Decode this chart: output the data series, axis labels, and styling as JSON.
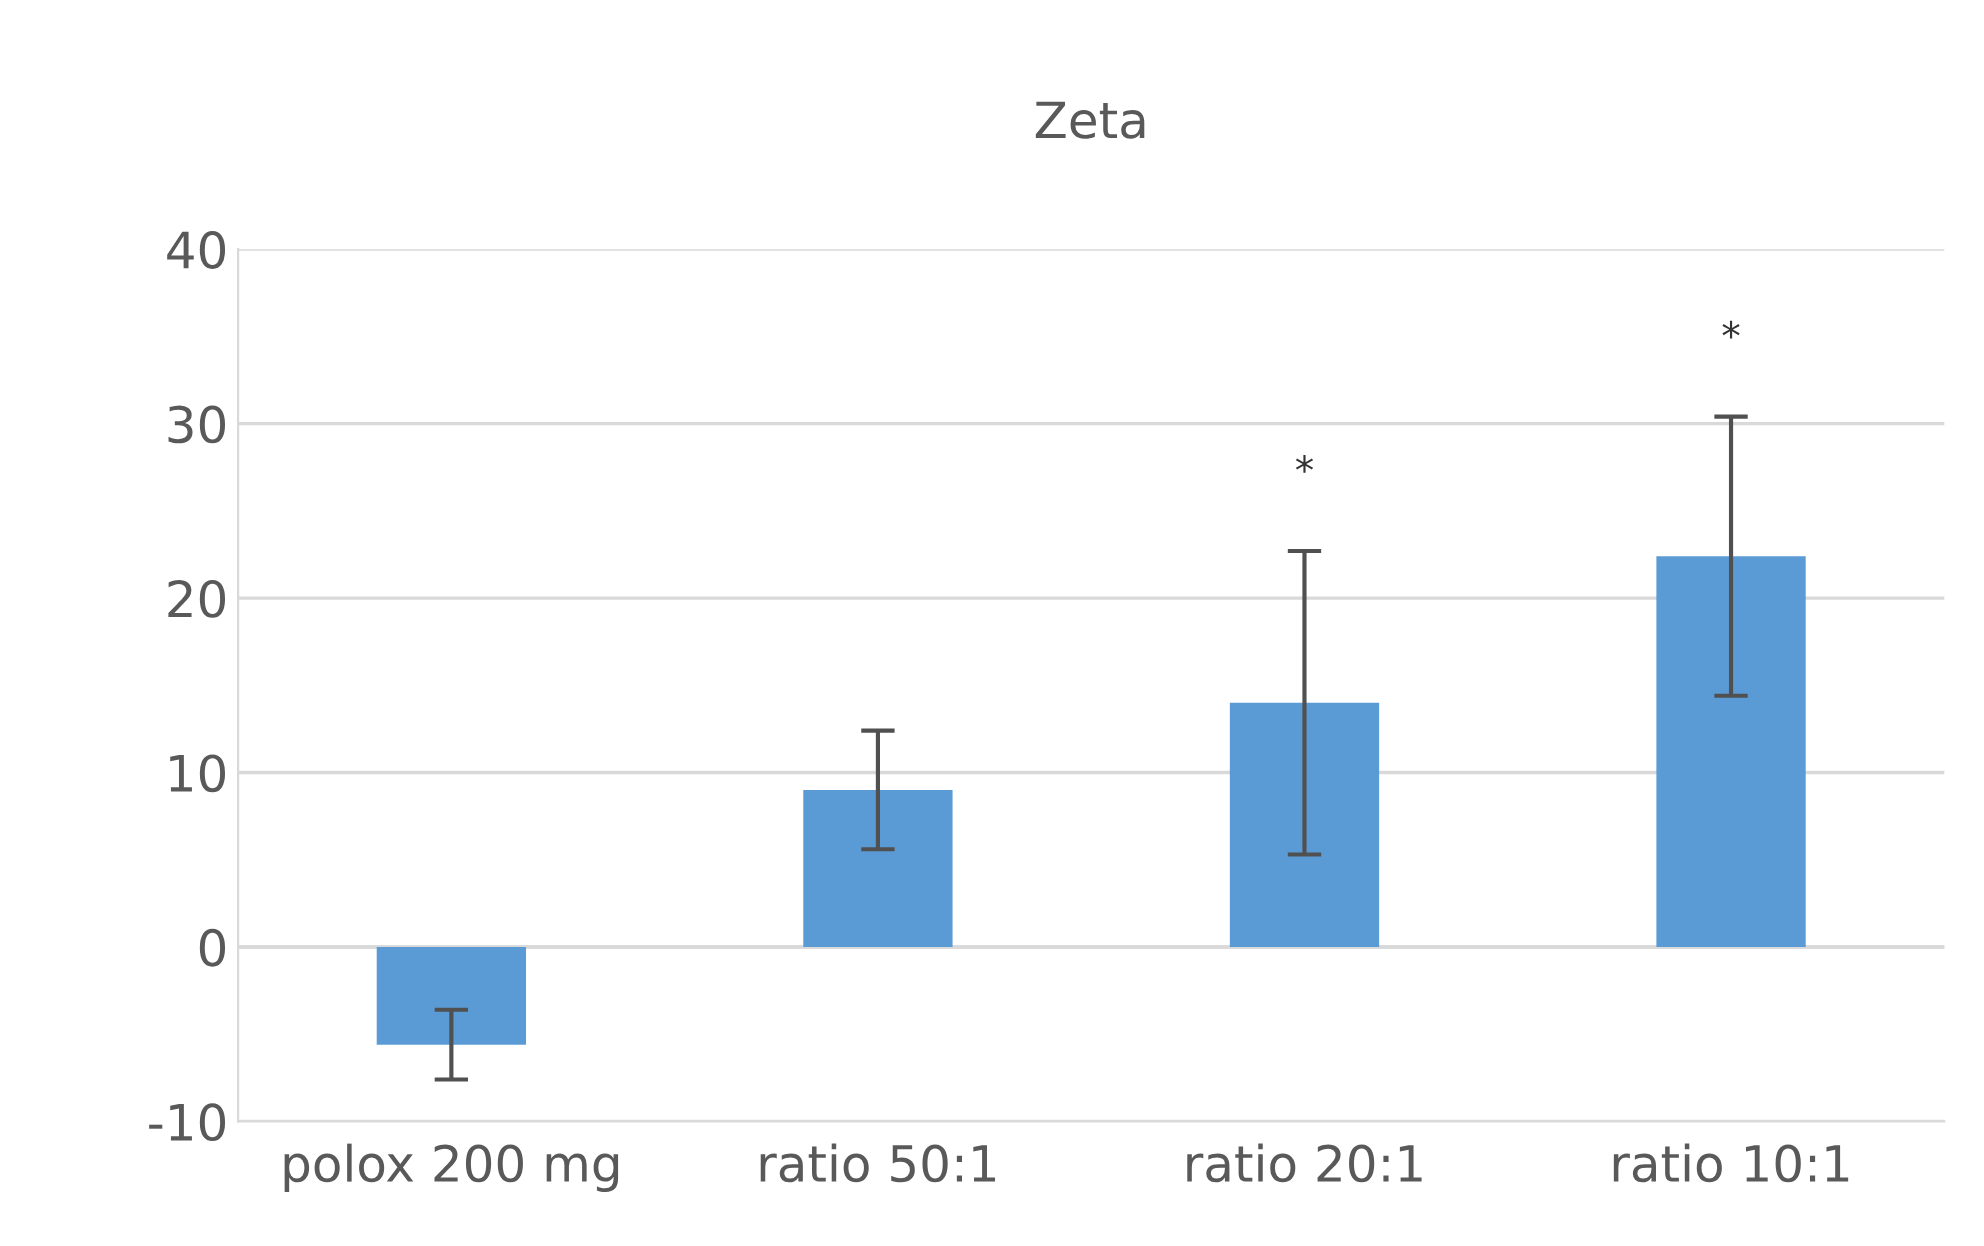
{
  "chart_data": {
    "type": "bar",
    "title": "Zeta",
    "categories": [
      "polox 200 mg",
      "ratio 50:1",
      "ratio 20:1",
      "ratio 10:1"
    ],
    "values": [
      -5.6,
      9.0,
      14.0,
      22.4
    ],
    "errors": [
      2.0,
      3.4,
      8.7,
      8.0
    ],
    "color": "#5b9bd5",
    "ylim": [
      -10,
      40
    ],
    "yticks": [
      -10,
      0,
      10,
      20,
      30,
      40
    ],
    "grid": "y",
    "annotations": [
      "*",
      "*"
    ]
  }
}
